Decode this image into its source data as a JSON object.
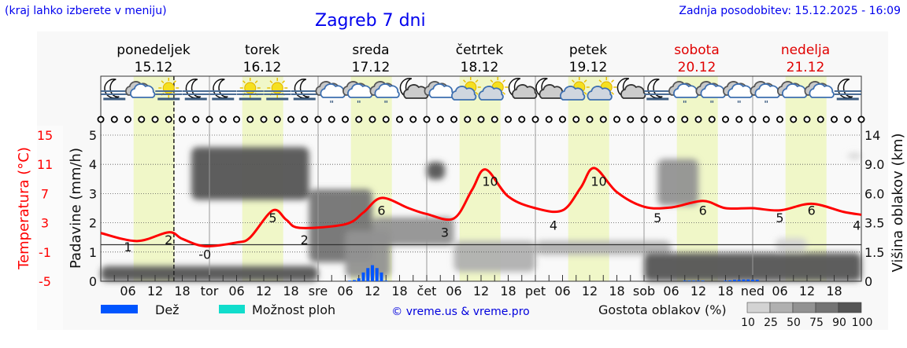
{
  "header": {
    "left_note": "(kraj lahko izberete v meniju)",
    "title": "Zagreb 7 dni",
    "updated": "Zadnja posodobitev: 15.12.2025 - 16:09"
  },
  "chart_data": {
    "type": "line",
    "now_marker": "15 16:09",
    "days": [
      {
        "name": "ponedeljek",
        "date": "15.12",
        "short": "",
        "weekend": false
      },
      {
        "name": "torek",
        "date": "16.12",
        "short": "tor",
        "weekend": false
      },
      {
        "name": "sreda",
        "date": "17.12",
        "short": "sre",
        "weekend": false
      },
      {
        "name": "četrtek",
        "date": "18.12",
        "short": "čet",
        "weekend": false
      },
      {
        "name": "petek",
        "date": "19.12",
        "short": "pet",
        "weekend": false
      },
      {
        "name": "sobota",
        "date": "20.12",
        "short": "sob",
        "weekend": true
      },
      {
        "name": "nedelja",
        "date": "21.12",
        "short": "ned",
        "weekend": true
      }
    ],
    "hour_ticks": [
      "06",
      "12",
      "18"
    ],
    "daylight_hours": [
      7.25,
      16.3
    ],
    "temperature": {
      "axis_label": "Temperatura (°C)",
      "ticks": [
        "15",
        "11",
        "7",
        "3",
        "-1",
        "-5"
      ],
      "range": [
        -5,
        15
      ],
      "color": "#ff0000",
      "points": [
        [
          "15 00",
          1.6
        ],
        [
          "15 08",
          0.5
        ],
        [
          "15 15",
          1.7
        ],
        [
          "15 18",
          0.8
        ],
        [
          "15 23",
          -0.2
        ],
        [
          "16 06",
          0.3
        ],
        [
          "16 09",
          1.0
        ],
        [
          "16 14",
          4.7
        ],
        [
          "16 17",
          3.4
        ],
        [
          "16 20",
          2.3
        ],
        [
          "17 06",
          2.8
        ],
        [
          "17 10",
          4.4
        ],
        [
          "17 14",
          6.4
        ],
        [
          "17 20",
          5.0
        ],
        [
          "18 00",
          4.2
        ],
        [
          "18 06",
          3.6
        ],
        [
          "18 10",
          7.5
        ],
        [
          "18 13",
          10.3
        ],
        [
          "18 18",
          6.6
        ],
        [
          "19 00",
          5.0
        ],
        [
          "19 06",
          4.7
        ],
        [
          "19 10",
          7.8
        ],
        [
          "19 13",
          10.5
        ],
        [
          "19 18",
          7.2
        ],
        [
          "20 00",
          5.2
        ],
        [
          "20 06",
          5.1
        ],
        [
          "20 13",
          6.0
        ],
        [
          "20 18",
          5.0
        ],
        [
          "21 00",
          5.0
        ],
        [
          "21 06",
          4.7
        ],
        [
          "21 13",
          5.6
        ],
        [
          "21 20",
          4.5
        ],
        [
          "21 24",
          4.1
        ]
      ],
      "labels": [
        [
          "15 06",
          "1",
          1
        ],
        [
          "15 15",
          "2",
          2
        ],
        [
          "15 23",
          "-0",
          0
        ],
        [
          "16 14",
          "5",
          5
        ],
        [
          "16 21",
          "2",
          2
        ],
        [
          "17 14",
          "6",
          6
        ],
        [
          "18 04",
          "3",
          3
        ],
        [
          "18 14",
          "10",
          10
        ],
        [
          "19 04",
          "4",
          4
        ],
        [
          "19 14",
          "10",
          10
        ],
        [
          "20 03",
          "5",
          5
        ],
        [
          "20 13",
          "6",
          6
        ],
        [
          "21 06",
          "5",
          5
        ],
        [
          "21 13",
          "6",
          6
        ],
        [
          "21 23",
          "4",
          4
        ]
      ]
    },
    "precipitation": {
      "axis_label": "Padavine (mm/h)",
      "ticks": [
        "5",
        "4",
        "3",
        "2",
        "1",
        "0"
      ],
      "range": [
        0,
        5
      ],
      "color": "#0055ff",
      "bars": [
        [
          "17 07",
          0.02
        ],
        [
          "17 08",
          0.04
        ],
        [
          "17 09",
          0.1
        ],
        [
          "17 10",
          0.3
        ],
        [
          "17 11",
          0.45
        ],
        [
          "17 12",
          0.55
        ],
        [
          "17 13",
          0.45
        ],
        [
          "17 14",
          0.3
        ],
        [
          "17 15",
          0.02
        ],
        [
          "20 09",
          0.02
        ],
        [
          "20 10",
          0.02
        ],
        [
          "20 11",
          0.02
        ],
        [
          "20 12",
          0.02
        ],
        [
          "20 13",
          0.02
        ],
        [
          "20 18",
          0.02
        ],
        [
          "20 19",
          0.03
        ],
        [
          "20 20",
          0.05
        ],
        [
          "20 21",
          0.05
        ],
        [
          "20 22",
          0.06
        ],
        [
          "20 23",
          0.06
        ],
        [
          "21 00",
          0.05
        ],
        [
          "21 01",
          0.05
        ]
      ]
    },
    "cloud_height": {
      "axis_label": "Višina oblakov (km)",
      "ticks": [
        "14",
        "9.0",
        "6.0",
        "3.5",
        "1.5",
        "0"
      ],
      "layers": [
        [
          "15 00",
          "16 24",
          0.0,
          0.8,
          90
        ],
        [
          "15 20",
          "16 22",
          5.5,
          12.0,
          90
        ],
        [
          "16 22",
          "17 12",
          1.0,
          6.5,
          75
        ],
        [
          "17 06",
          "17 16",
          0.2,
          3.0,
          50
        ],
        [
          "17 12",
          "18 06",
          2.0,
          4.0,
          50
        ],
        [
          "18 00",
          "18 04",
          7.5,
          9.5,
          90
        ],
        [
          "18 06",
          "19 00",
          0.5,
          2.3,
          25
        ],
        [
          "19 00",
          "20 06",
          1.4,
          2.3,
          25
        ],
        [
          "20 03",
          "20 12",
          5.0,
          10.0,
          50
        ],
        [
          "20 00",
          "21 24",
          0.0,
          1.5,
          90
        ],
        [
          "21 05",
          "21 12",
          1.6,
          2.5,
          10
        ],
        [
          "21 21",
          "21 24",
          10.0,
          11.0,
          10
        ]
      ]
    },
    "weather_icons": [
      "moon-fog",
      "cloud",
      "sun-fog",
      "moon-fog",
      "moon-fog",
      "sun-fog",
      "sun-fog",
      "moon-fog",
      "cloud-drizzle",
      "cloud-drizzle",
      "cloud-drizzle",
      "moon-cloud",
      "cloud",
      "sun-cloud",
      "sun-cloud",
      "moon-cloud",
      "moon-cloud",
      "sun-cloud",
      "sun-cloud",
      "moon-cloud",
      "moon-fog",
      "cloud-drizzle",
      "cloud-drizzle",
      "cloud-drizzle",
      "cloud-drizzle",
      "cloud",
      "cloud",
      "moon-fog"
    ]
  },
  "legend": {
    "rain": "Dež",
    "rain_color": "#0055ff",
    "shower": "Možnost ploh",
    "shower_color": "#11ddcc",
    "credit": "© vreme.us & vreme.pro",
    "cloud_density": "Gostota oblakov (%)",
    "density_levels": [
      "10",
      "25",
      "50",
      "75",
      "90",
      "100"
    ],
    "density_colors": [
      "#d3d3d3",
      "#b0b0b0",
      "#929292",
      "#747474",
      "#555555"
    ]
  }
}
